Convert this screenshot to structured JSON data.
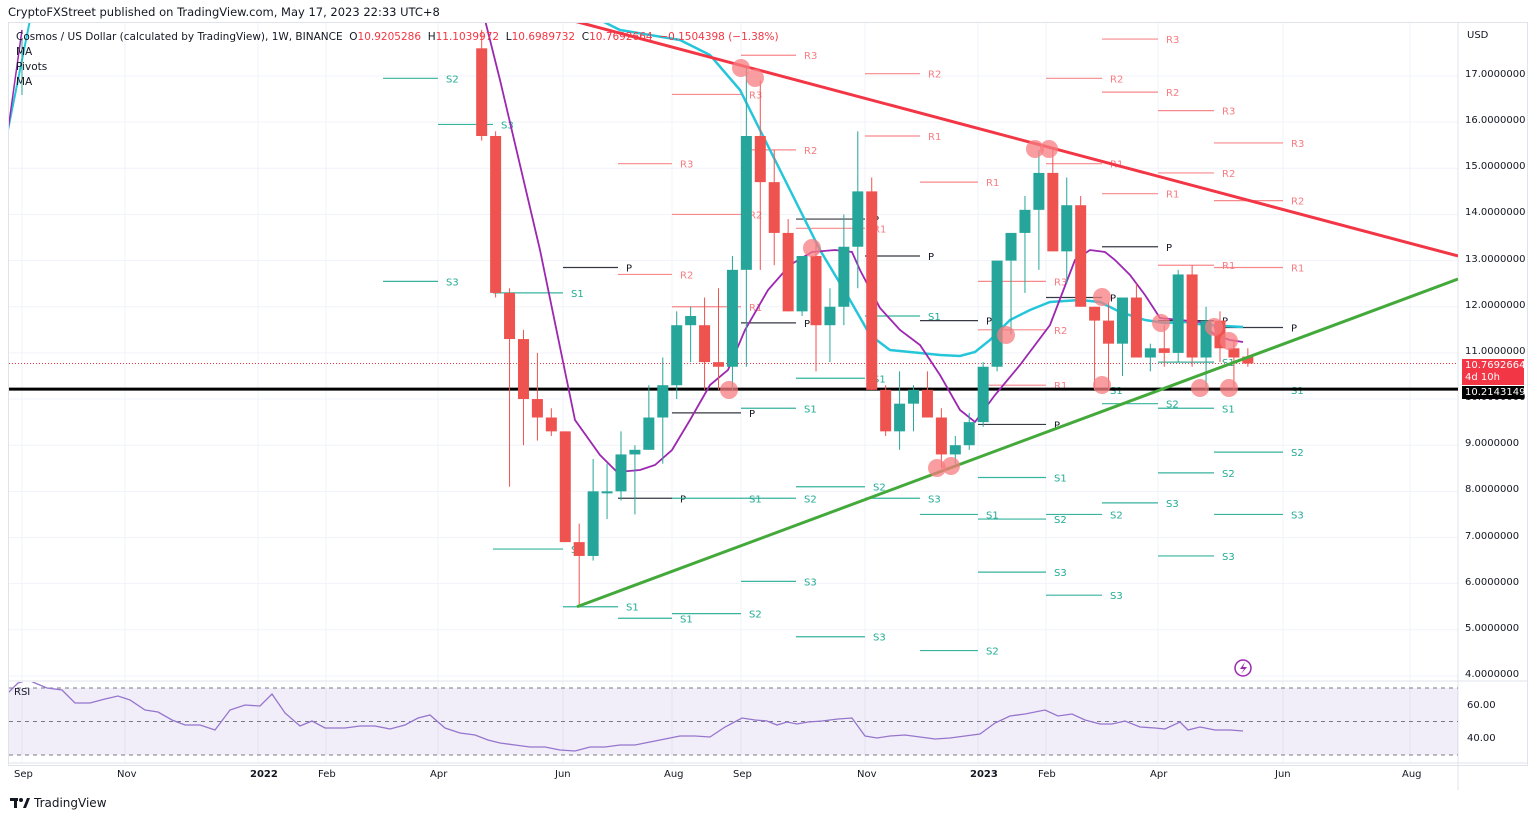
{
  "header": {
    "publisher": "CryptoFXStreet published on TradingView.com, May 17, 2023 22:33 UTC+8"
  },
  "legend": {
    "symbol": "Cosmos / US Dollar (calculated by TradingView), 1W, BINANCE",
    "open_label": "O",
    "open": "10.9205286",
    "high_label": "H",
    "high": "11.1039972",
    "low_label": "L",
    "low": "10.6989732",
    "close_label": "C",
    "close": "10.7692664",
    "change": "−0.1504398 (−1.38%)",
    "indicators": [
      "MA",
      "Pivots",
      "MA"
    ]
  },
  "price_axis": {
    "currency": "USD",
    "ticks": [
      "17.0000000",
      "16.0000000",
      "15.0000000",
      "14.0000000",
      "13.0000000",
      "12.0000000",
      "11.0000000",
      "10.0000000",
      "9.0000000",
      "8.0000000",
      "7.0000000",
      "6.0000000",
      "5.0000000",
      "4.0000000"
    ],
    "current_price": "10.7692664",
    "countdown": "4d 10h",
    "horizontal_line_price": "10.2143149"
  },
  "rsi": {
    "label": "RSI",
    "ticks": [
      "60.00",
      "40.00"
    ]
  },
  "time_axis": {
    "labels": [
      "Sep",
      "Nov",
      "2022",
      "Feb",
      "Apr",
      "Jun",
      "Aug",
      "Sep",
      "Nov",
      "2023",
      "Feb",
      "Apr",
      "Jun",
      "Aug"
    ]
  },
  "footer": {
    "brand": "TradingView"
  },
  "colors": {
    "up": "#26a69a",
    "down": "#ef5350",
    "resistance_trendline": "#f23645",
    "support_trendline": "#43a93a",
    "ma_fast": "#9c27b0",
    "ma_slow": "#26c6da",
    "pivot_r": "#f77c80",
    "pivot_s": "#22ab94",
    "pivot_p": "#131722"
  },
  "chart_data": {
    "type": "candlestick",
    "title": "Cosmos / US Dollar (ATOM/USD), 1W, BINANCE",
    "xlabel": "",
    "ylabel": "USD",
    "ylim": [
      4.0,
      17.4
    ],
    "grid": true,
    "x_range": [
      "Sep 2021",
      "Aug 2023"
    ],
    "last_candle": {
      "open": 10.9205286,
      "high": 11.1039972,
      "low": 10.6989732,
      "close": 10.7692664,
      "change": -0.1504398,
      "change_pct": -1.38
    },
    "horizontal_support": 10.2143149,
    "trendlines": [
      {
        "name": "descending resistance",
        "from": {
          "date": "2022-05",
          "price": 17.8
        },
        "to": {
          "date": "2023-08",
          "price": 13.1
        }
      },
      {
        "name": "ascending support",
        "from": {
          "date": "2022-06-13",
          "price": 5.5
        },
        "to": {
          "date": "2023-08",
          "price": 12.6
        }
      }
    ],
    "candles_approx": [
      {
        "date": "2022-04-25",
        "o": 17.6,
        "h": 18.0,
        "l": 15.6,
        "c": 15.7
      },
      {
        "date": "2022-05-02",
        "o": 15.7,
        "h": 15.8,
        "l": 12.2,
        "c": 12.3
      },
      {
        "date": "2022-05-09",
        "o": 12.3,
        "h": 12.4,
        "l": 8.1,
        "c": 11.3
      },
      {
        "date": "2022-05-16",
        "o": 11.3,
        "h": 11.5,
        "l": 9.0,
        "c": 10.0
      },
      {
        "date": "2022-05-23",
        "o": 10.0,
        "h": 11.0,
        "l": 9.1,
        "c": 9.6
      },
      {
        "date": "2022-05-30",
        "o": 9.6,
        "h": 9.8,
        "l": 9.2,
        "c": 9.3
      },
      {
        "date": "2022-06-06",
        "o": 9.3,
        "h": 9.3,
        "l": 6.9,
        "c": 6.9
      },
      {
        "date": "2022-06-13",
        "o": 6.9,
        "h": 7.3,
        "l": 5.5,
        "c": 6.6
      },
      {
        "date": "2022-06-20",
        "o": 6.6,
        "h": 8.7,
        "l": 6.5,
        "c": 8.0
      },
      {
        "date": "2022-06-27",
        "o": 8.0,
        "h": 8.6,
        "l": 7.4,
        "c": 8.0
      },
      {
        "date": "2022-07-04",
        "o": 8.0,
        "h": 9.3,
        "l": 7.8,
        "c": 8.8
      },
      {
        "date": "2022-07-11",
        "o": 8.8,
        "h": 9.0,
        "l": 7.5,
        "c": 8.9
      },
      {
        "date": "2022-07-18",
        "o": 8.9,
        "h": 10.3,
        "l": 8.9,
        "c": 9.6
      },
      {
        "date": "2022-07-25",
        "o": 9.6,
        "h": 10.9,
        "l": 8.6,
        "c": 10.3
      },
      {
        "date": "2022-08-01",
        "o": 10.3,
        "h": 11.9,
        "l": 10.0,
        "c": 11.6
      },
      {
        "date": "2022-08-08",
        "o": 11.6,
        "h": 12.0,
        "l": 10.8,
        "c": 11.8
      },
      {
        "date": "2022-08-15",
        "o": 11.6,
        "h": 12.2,
        "l": 10.2,
        "c": 10.8
      },
      {
        "date": "2022-08-22",
        "o": 10.8,
        "h": 12.4,
        "l": 10.2,
        "c": 10.7
      },
      {
        "date": "2022-08-29",
        "o": 10.7,
        "h": 13.1,
        "l": 10.2,
        "c": 12.8
      },
      {
        "date": "2022-09-05",
        "o": 12.8,
        "h": 17.2,
        "l": 10.7,
        "c": 15.7
      },
      {
        "date": "2022-09-12",
        "o": 15.7,
        "h": 16.9,
        "l": 12.8,
        "c": 14.7
      },
      {
        "date": "2022-09-19",
        "o": 14.7,
        "h": 15.4,
        "l": 12.9,
        "c": 13.6
      },
      {
        "date": "2022-09-26",
        "o": 13.6,
        "h": 13.9,
        "l": 11.9,
        "c": 11.9
      },
      {
        "date": "2022-10-03",
        "o": 11.9,
        "h": 12.6,
        "l": 11.8,
        "c": 13.1
      },
      {
        "date": "2022-10-10",
        "o": 13.1,
        "h": 13.4,
        "l": 10.6,
        "c": 11.6
      },
      {
        "date": "2022-10-17",
        "o": 11.6,
        "h": 12.4,
        "l": 10.8,
        "c": 12.0
      },
      {
        "date": "2022-10-24",
        "o": 12.0,
        "h": 14.0,
        "l": 11.6,
        "c": 13.3
      },
      {
        "date": "2022-10-31",
        "o": 13.3,
        "h": 15.8,
        "l": 12.4,
        "c": 14.5
      },
      {
        "date": "2022-11-07",
        "o": 14.5,
        "h": 14.8,
        "l": 10.2,
        "c": 10.2
      },
      {
        "date": "2022-11-14",
        "o": 10.2,
        "h": 10.3,
        "l": 9.2,
        "c": 9.3
      },
      {
        "date": "2022-11-21",
        "o": 9.3,
        "h": 10.6,
        "l": 8.9,
        "c": 9.9
      },
      {
        "date": "2022-11-28",
        "o": 9.9,
        "h": 10.3,
        "l": 9.3,
        "c": 10.2
      },
      {
        "date": "2022-12-05",
        "o": 10.2,
        "h": 10.6,
        "l": 9.6,
        "c": 9.6
      },
      {
        "date": "2022-12-12",
        "o": 9.6,
        "h": 9.8,
        "l": 8.5,
        "c": 8.8
      },
      {
        "date": "2022-12-19",
        "o": 8.8,
        "h": 9.2,
        "l": 8.6,
        "c": 9.0
      },
      {
        "date": "2022-12-26",
        "o": 9.0,
        "h": 9.7,
        "l": 8.9,
        "c": 9.5
      },
      {
        "date": "2023-01-02",
        "o": 9.5,
        "h": 10.8,
        "l": 9.4,
        "c": 10.7
      },
      {
        "date": "2023-01-09",
        "o": 10.7,
        "h": 13.0,
        "l": 10.6,
        "c": 13.0
      },
      {
        "date": "2023-01-16",
        "o": 13.0,
        "h": 13.3,
        "l": 11.4,
        "c": 13.6
      },
      {
        "date": "2023-01-23",
        "o": 13.6,
        "h": 14.4,
        "l": 12.3,
        "c": 14.1
      },
      {
        "date": "2023-01-30",
        "o": 14.1,
        "h": 15.4,
        "l": 12.8,
        "c": 14.9
      },
      {
        "date": "2023-02-06",
        "o": 14.9,
        "h": 15.4,
        "l": 13.3,
        "c": 13.2
      },
      {
        "date": "2023-02-13",
        "o": 13.2,
        "h": 14.8,
        "l": 12.5,
        "c": 14.2
      },
      {
        "date": "2023-02-20",
        "o": 14.2,
        "h": 14.4,
        "l": 12.0,
        "c": 12.0
      },
      {
        "date": "2023-02-27",
        "o": 12.0,
        "h": 12.0,
        "l": 10.2,
        "c": 11.7
      },
      {
        "date": "2023-03-06",
        "o": 11.7,
        "h": 12.1,
        "l": 10.2,
        "c": 11.2
      },
      {
        "date": "2023-03-13",
        "o": 11.2,
        "h": 12.1,
        "l": 10.5,
        "c": 12.2
      },
      {
        "date": "2023-03-20",
        "o": 12.2,
        "h": 12.5,
        "l": 10.9,
        "c": 10.9
      },
      {
        "date": "2023-03-27",
        "o": 10.9,
        "h": 11.2,
        "l": 10.6,
        "c": 11.1
      },
      {
        "date": "2023-04-03",
        "o": 11.1,
        "h": 11.6,
        "l": 10.7,
        "c": 11.0
      },
      {
        "date": "2023-04-10",
        "o": 11.0,
        "h": 12.8,
        "l": 10.8,
        "c": 12.7
      },
      {
        "date": "2023-04-17",
        "o": 12.7,
        "h": 12.9,
        "l": 10.7,
        "c": 10.9
      },
      {
        "date": "2023-04-24",
        "o": 10.9,
        "h": 12.0,
        "l": 10.2,
        "c": 11.7
      },
      {
        "date": "2023-05-01",
        "o": 11.7,
        "h": 11.9,
        "l": 10.8,
        "c": 11.1
      },
      {
        "date": "2023-05-08",
        "o": 11.1,
        "h": 11.3,
        "l": 10.2,
        "c": 10.9
      },
      {
        "date": "2023-05-15",
        "o": 10.92,
        "h": 11.1,
        "l": 10.7,
        "c": 10.77
      }
    ],
    "rsi": {
      "ylim": [
        30,
        70
      ],
      "bands": [
        30,
        50,
        70
      ],
      "ticks": [
        40,
        60
      ],
      "note": "RSI ~70 in Sep 2021, declining to ~31 in Jun 2022, ~55 in Sep 2022, ~40 in Nov-Dec 2022, ~60 in Jan 2023, ~45 in May 2023"
    }
  }
}
